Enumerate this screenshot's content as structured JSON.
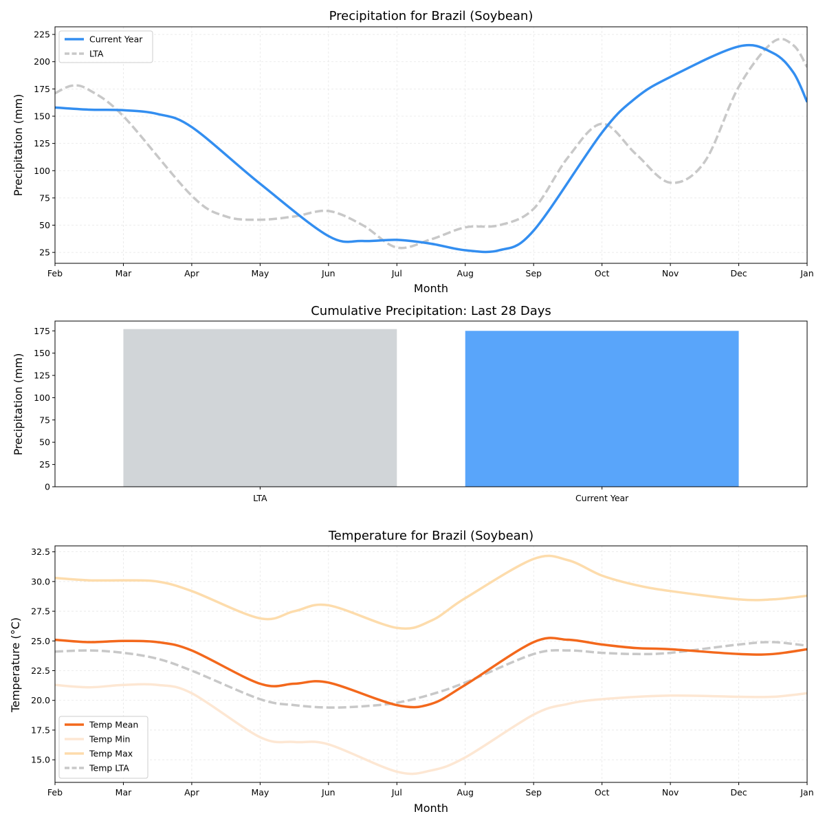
{
  "chart_data": [
    {
      "type": "line",
      "title": "Precipitation for Brazil (Soybean)",
      "xlabel": "Month",
      "ylabel": "Precipitation (mm)",
      "categories": [
        "Feb",
        "Mar",
        "Apr",
        "May",
        "Jun",
        "Jul",
        "Aug",
        "Sep",
        "Oct",
        "Nov",
        "Dec",
        "Jan"
      ],
      "ylim": [
        15,
        232
      ],
      "yticks": [
        25,
        50,
        75,
        100,
        125,
        150,
        175,
        200,
        225
      ],
      "grid": true,
      "legend_position": "upper-left",
      "series": [
        {
          "name": "Current Year",
          "color": "#338ef0",
          "style": "solid",
          "points": [
            [
              0,
              158
            ],
            [
              0.5,
              156
            ],
            [
              1,
              155.5
            ],
            [
              1.5,
              152
            ],
            [
              2,
              140
            ],
            [
              3,
              88
            ],
            [
              4,
              40
            ],
            [
              4.5,
              35.5
            ],
            [
              5,
              36.5
            ],
            [
              5.5,
              33
            ],
            [
              6,
              27
            ],
            [
              6.5,
              27
            ],
            [
              7,
              45
            ],
            [
              8,
              135
            ],
            [
              8.5,
              167
            ],
            [
              9,
              186
            ],
            [
              10,
              214
            ],
            [
              10.5,
              208
            ],
            [
              10.8,
              190
            ],
            [
              11,
              163
            ]
          ]
        },
        {
          "name": "LTA",
          "color": "#c8c8c8",
          "style": "dashed",
          "points": [
            [
              0,
              171
            ],
            [
              0.25,
              178
            ],
            [
              0.5,
              174
            ],
            [
              1,
              150
            ],
            [
              2,
              77
            ],
            [
              2.5,
              58
            ],
            [
              3,
              55
            ],
            [
              3.5,
              58
            ],
            [
              4,
              63
            ],
            [
              4.5,
              50
            ],
            [
              5,
              29.5
            ],
            [
              5.5,
              37
            ],
            [
              6,
              48
            ],
            [
              6.5,
              50
            ],
            [
              7,
              65
            ],
            [
              7.5,
              112
            ],
            [
              8,
              143
            ],
            [
              8.5,
              115
            ],
            [
              9,
              89
            ],
            [
              9.5,
              108
            ],
            [
              10,
              177
            ],
            [
              10.5,
              218
            ],
            [
              10.8,
              215
            ],
            [
              11,
              195
            ]
          ]
        }
      ]
    },
    {
      "type": "bar",
      "title": "Cumulative Precipitation: Last 28 Days",
      "ylabel": "Precipitation (mm)",
      "categories": [
        "LTA",
        "Current Year"
      ],
      "values": [
        177,
        175
      ],
      "colors": [
        "#d1d5d8",
        "#59a5fa"
      ],
      "ylim": [
        0,
        186
      ],
      "yticks": [
        0,
        25,
        50,
        75,
        100,
        125,
        150,
        175
      ]
    },
    {
      "type": "line",
      "title": "Temperature for Brazil (Soybean)",
      "xlabel": "Month",
      "ylabel": "Temperature (°C)",
      "categories": [
        "Feb",
        "Mar",
        "Apr",
        "May",
        "Jun",
        "Jul",
        "Aug",
        "Sep",
        "Oct",
        "Nov",
        "Dec",
        "Jan"
      ],
      "ylim": [
        13.1,
        33.0
      ],
      "yticks": [
        15.0,
        17.5,
        20.0,
        22.5,
        25.0,
        27.5,
        30.0,
        32.5
      ],
      "grid": true,
      "legend_position": "lower-left",
      "series": [
        {
          "name": "Temp Mean",
          "color": "#f3681c",
          "style": "solid",
          "points": [
            [
              0,
              25.1
            ],
            [
              0.5,
              24.9
            ],
            [
              1,
              25.0
            ],
            [
              1.5,
              24.9
            ],
            [
              2,
              24.2
            ],
            [
              3,
              21.4
            ],
            [
              3.5,
              21.4
            ],
            [
              4,
              21.5
            ],
            [
              5,
              19.6
            ],
            [
              5.5,
              19.7
            ],
            [
              6,
              21.3
            ],
            [
              7,
              24.9
            ],
            [
              7.5,
              25.1
            ],
            [
              8,
              24.7
            ],
            [
              8.5,
              24.4
            ],
            [
              9,
              24.3
            ],
            [
              10,
              23.9
            ],
            [
              10.5,
              23.9
            ],
            [
              11,
              24.3
            ]
          ]
        },
        {
          "name": "Temp Min",
          "color": "#fde7d3",
          "style": "solid",
          "points": [
            [
              0,
              21.3
            ],
            [
              0.5,
              21.1
            ],
            [
              1,
              21.3
            ],
            [
              1.5,
              21.3
            ],
            [
              2,
              20.6
            ],
            [
              3,
              16.9
            ],
            [
              3.5,
              16.5
            ],
            [
              4,
              16.3
            ],
            [
              5,
              14.0
            ],
            [
              5.5,
              14.1
            ],
            [
              6,
              15.2
            ],
            [
              7,
              18.8
            ],
            [
              7.5,
              19.7
            ],
            [
              8,
              20.1
            ],
            [
              9,
              20.4
            ],
            [
              10,
              20.3
            ],
            [
              10.5,
              20.3
            ],
            [
              11,
              20.6
            ]
          ]
        },
        {
          "name": "Temp Max",
          "color": "#fddcac",
          "style": "solid",
          "points": [
            [
              0,
              30.3
            ],
            [
              0.5,
              30.1
            ],
            [
              1,
              30.1
            ],
            [
              1.5,
              30.0
            ],
            [
              2,
              29.2
            ],
            [
              3,
              26.9
            ],
            [
              3.5,
              27.5
            ],
            [
              4,
              28.0
            ],
            [
              5,
              26.1
            ],
            [
              5.5,
              26.7
            ],
            [
              6,
              28.6
            ],
            [
              7,
              31.9
            ],
            [
              7.5,
              31.8
            ],
            [
              8,
              30.5
            ],
            [
              8.5,
              29.7
            ],
            [
              9,
              29.2
            ],
            [
              10,
              28.5
            ],
            [
              10.5,
              28.5
            ],
            [
              11,
              28.8
            ]
          ]
        },
        {
          "name": "Temp LTA",
          "color": "#c8c8c8",
          "style": "dashed",
          "points": [
            [
              0,
              24.1
            ],
            [
              0.5,
              24.2
            ],
            [
              1,
              24.0
            ],
            [
              1.5,
              23.5
            ],
            [
              2,
              22.5
            ],
            [
              3,
              20.1
            ],
            [
              3.5,
              19.6
            ],
            [
              4,
              19.4
            ],
            [
              4.5,
              19.5
            ],
            [
              5,
              19.8
            ],
            [
              5.5,
              20.5
            ],
            [
              6,
              21.5
            ],
            [
              7,
              23.9
            ],
            [
              7.5,
              24.2
            ],
            [
              8,
              24.0
            ],
            [
              8.5,
              23.9
            ],
            [
              9,
              24.0
            ],
            [
              10,
              24.7
            ],
            [
              10.5,
              24.9
            ],
            [
              11,
              24.6
            ]
          ]
        }
      ]
    }
  ]
}
